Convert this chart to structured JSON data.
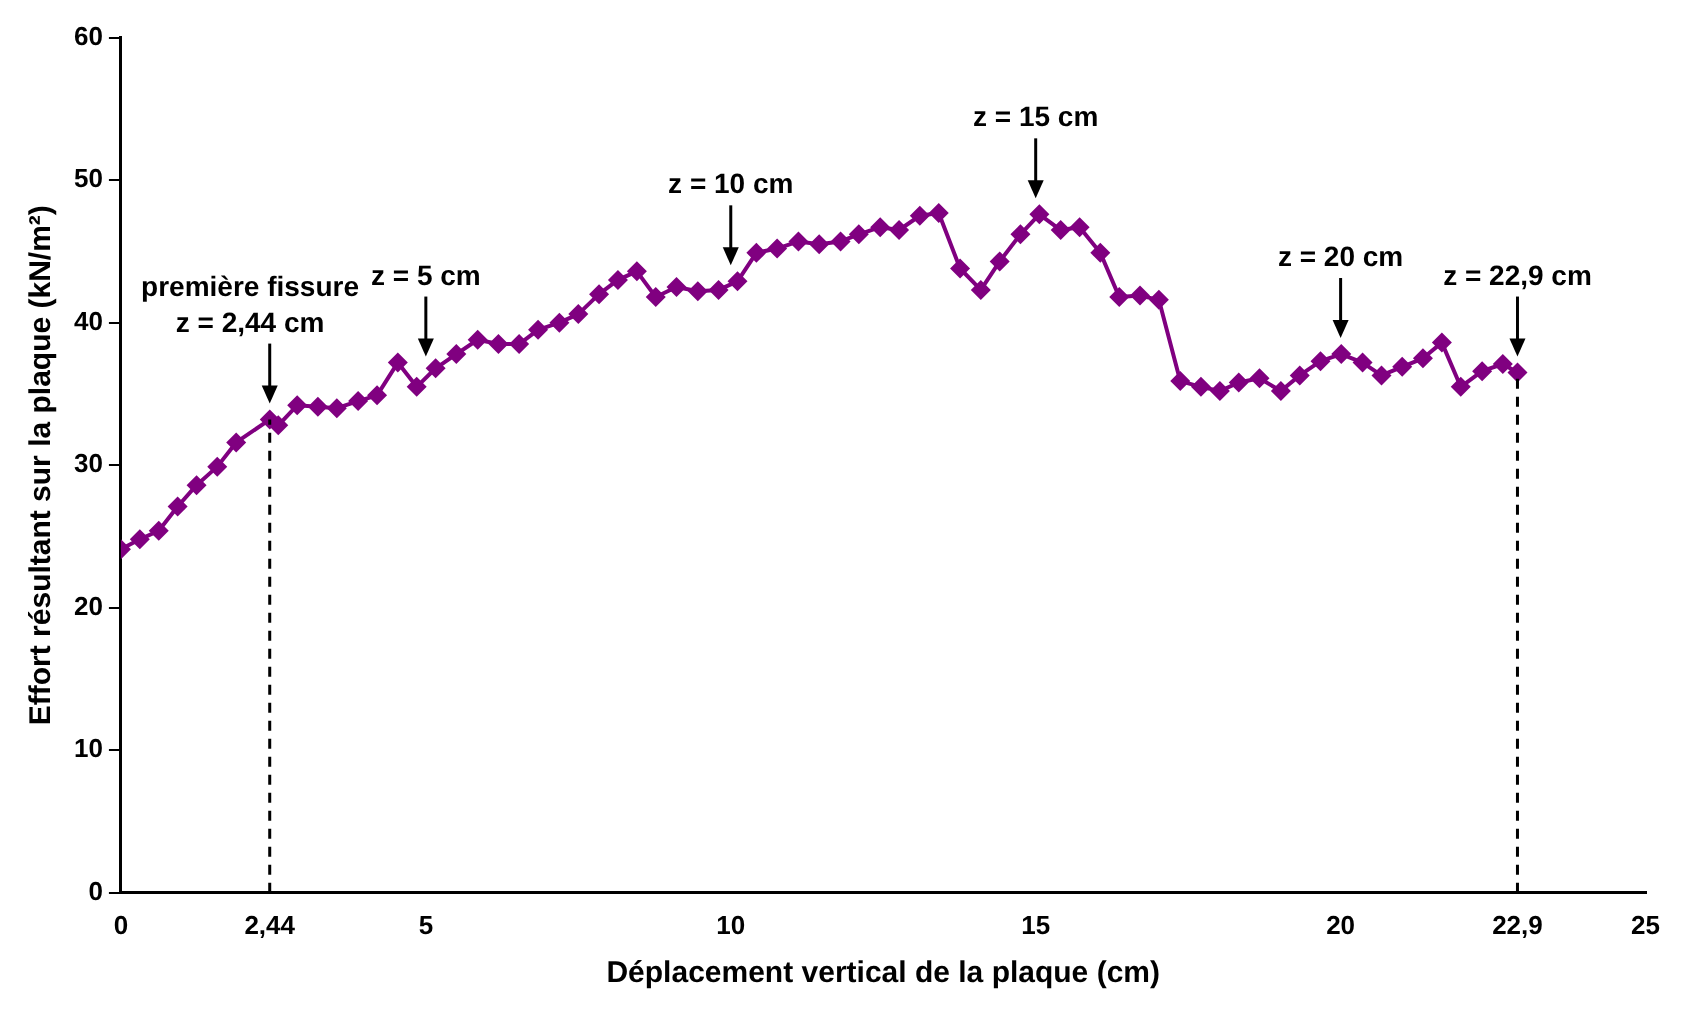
{
  "chart_data": {
    "type": "line",
    "xlabel": "Déplacement vertical de la plaque (cm)",
    "ylabel": "Effort résultant sur la plaque (kN/m²)",
    "xlim": [
      0,
      25
    ],
    "xticks": [
      0,
      {
        "value": 2.44,
        "label": "2,44"
      },
      5,
      10,
      15,
      20,
      {
        "value": 22.9,
        "label": "22,9"
      },
      25
    ],
    "ylim": [
      0,
      60
    ],
    "yticks": [
      0,
      10,
      20,
      30,
      40,
      50,
      60
    ],
    "grid": false,
    "legend": false,
    "marker": "diamond",
    "line_style": "solid",
    "series": [
      {
        "color": "#800080",
        "x": [
          0,
          0.31,
          0.62,
          0.93,
          1.24,
          1.58,
          1.89,
          2.44,
          2.58,
          2.89,
          3.23,
          3.54,
          3.89,
          4.2,
          4.54,
          4.85,
          5.16,
          5.5,
          5.85,
          6.19,
          6.53,
          6.84,
          7.19,
          7.5,
          7.84,
          8.15,
          8.46,
          8.77,
          9.11,
          9.46,
          9.8,
          10.11,
          10.42,
          10.76,
          11.11,
          11.45,
          11.8,
          12.1,
          12.45,
          12.76,
          13.1,
          13.41,
          13.76,
          14.1,
          14.41,
          14.75,
          15.06,
          15.41,
          15.72,
          16.06,
          16.37,
          16.71,
          17.02,
          17.37,
          17.71,
          18.02,
          18.33,
          18.67,
          19.02,
          19.33,
          19.67,
          20.01,
          20.36,
          20.67,
          21.01,
          21.35,
          21.66,
          21.97,
          22.32,
          22.66,
          22.9
        ],
        "values": [
          24.1,
          24.8,
          25.4,
          27.1,
          28.6,
          29.9,
          31.6,
          33.2,
          32.8,
          34.2,
          34.1,
          34,
          34.5,
          34.9,
          37.2,
          35.5,
          36.8,
          37.8,
          38.8,
          38.5,
          38.5,
          39.5,
          40,
          40.6,
          42,
          43,
          43.6,
          41.8,
          42.5,
          42.2,
          42.3,
          42.9,
          44.9,
          45.2,
          45.7,
          45.5,
          45.7,
          46.2,
          46.7,
          46.5,
          47.5,
          47.7,
          43.8,
          42.3,
          44.3,
          46.2,
          47.6,
          46.5,
          46.7,
          44.9,
          41.8,
          41.9,
          41.6,
          35.9,
          35.5,
          35.2,
          35.8,
          36.1,
          35.2,
          36.3,
          37.3,
          37.8,
          37.2,
          36.3,
          36.9,
          37.5,
          38.6,
          35.5,
          36.6,
          37.1,
          36.5
        ]
      }
    ],
    "ref_lines": [
      {
        "axis": "x",
        "value": 2.44,
        "line_style": "dashed",
        "color": "#000000"
      },
      {
        "axis": "x",
        "value": 22.9,
        "line_style": "dashed",
        "color": "#000000"
      }
    ],
    "annotations": [
      {
        "text": "première fissure\nz = 2,44 cm",
        "x": 2.44,
        "y": 33.2
      },
      {
        "text": "z = 5 cm",
        "x": 5,
        "y": 36.5
      },
      {
        "text": "z = 10 cm",
        "x": 10,
        "y": 42.9
      },
      {
        "text": "z = 15 cm",
        "x": 15,
        "y": 47.6
      },
      {
        "text": "z = 20 cm",
        "x": 20,
        "y": 37.8
      },
      {
        "text": "z = 22,9 cm",
        "x": 22.9,
        "y": 36.5
      }
    ]
  }
}
